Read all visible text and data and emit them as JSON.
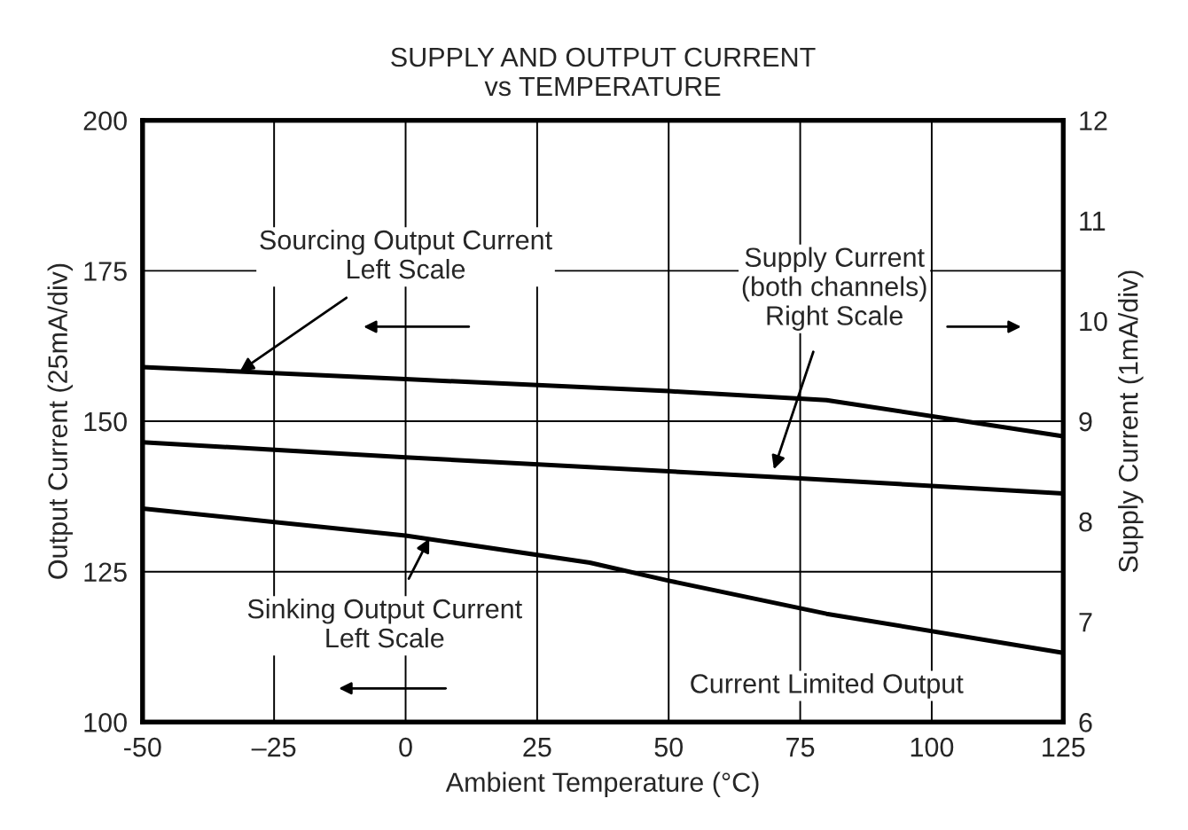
{
  "chart_data": {
    "type": "line",
    "title": "SUPPLY AND OUTPUT CURRENT\nvs TEMPERATURE",
    "xlabel": "Ambient Temperature (°C)",
    "ylabel": "Output Current (25mA/div)",
    "y2label": "Supply Current (1mA/div)",
    "series": [
      {
        "color": "#000000",
        "x": [
          -50,
          0,
          50,
          80,
          125
        ],
        "values": [
          159,
          157,
          155,
          153.5,
          147.5
        ]
      },
      {
        "color": "#000000",
        "axis": "y2",
        "x": [
          -50,
          0,
          75,
          125
        ],
        "values": [
          8.79,
          8.64,
          8.43,
          8.28
        ]
      },
      {
        "color": "#000000",
        "x": [
          -50,
          0,
          35,
          50,
          80,
          125
        ],
        "values": [
          135.5,
          131,
          126.5,
          123.5,
          118,
          111.5
        ]
      }
    ],
    "xlim": [
      -50,
      125
    ],
    "xticks": [
      -50,
      {
        "value": -25,
        "label": "–25"
      },
      0,
      25,
      50,
      75,
      100,
      125
    ],
    "ylim": [
      100,
      200
    ],
    "yticks": [
      100,
      125,
      150,
      175,
      200
    ],
    "y2lim": [
      6,
      12
    ],
    "y2ticks": [
      6,
      7,
      8,
      9,
      10,
      11,
      12
    ],
    "grid": true,
    "marker": "none",
    "line_style": "solid",
    "annotations": [
      {
        "text": "Sourcing Output Current\nLeft Scale",
        "x": -31.5,
        "y": 158.3
      },
      {
        "text": "Supply Current\n(both channels)\nRight Scale",
        "x": 70,
        "y": 142
      },
      {
        "text": "Sinking Output Current\nLeft Scale",
        "x": 4.5,
        "y": 130.5
      },
      "Current Limited Output"
    ]
  }
}
